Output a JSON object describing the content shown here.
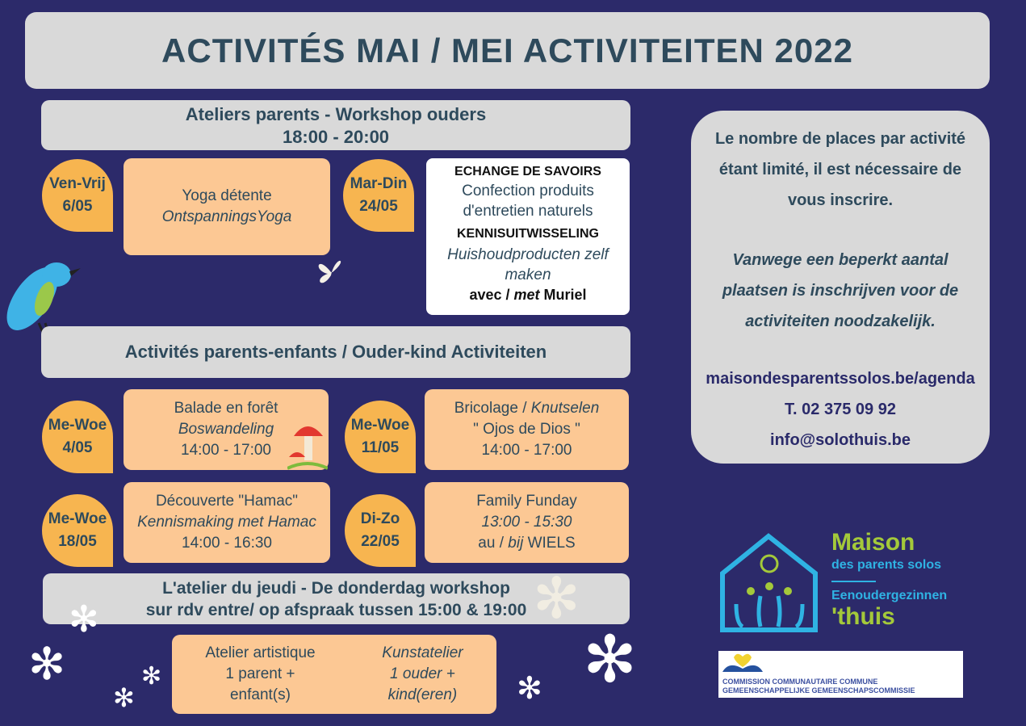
{
  "title": "ACTIVITÉS MAI / MEI ACTIVITEITEN 2022",
  "workshops": {
    "heading": "Ateliers parents - Workshop ouders",
    "time": "18:00 - 20:00",
    "items": [
      {
        "day": "Ven-Vrij",
        "date": "6/05",
        "title": "Yoga détente",
        "subtitle": "OntspanningsYoga"
      },
      {
        "day": "Mar-Din",
        "date": "24/05",
        "fr_label": "ECHANGE DE SAVOIRS",
        "fr_title": "Confection produits d'entretien naturels",
        "nl_label": "KENNISUITWISSELING",
        "nl_title": "Huishoudproducten zelf maken",
        "with_fr": "avec /",
        "with_nl": "met",
        "with_name": "Muriel"
      }
    ]
  },
  "parent_child": {
    "heading": "Activités parents-enfants / Ouder-kind Activiteiten",
    "items": [
      {
        "day": "Me-Woe",
        "date": "4/05",
        "title": "Balade en forêt",
        "subtitle": "Boswandeling",
        "time": "14:00 - 17:00"
      },
      {
        "day": "Me-Woe",
        "date": "11/05",
        "title": "Bricolage /",
        "title_nl": "Knutselen",
        "subtitle": "\" Ojos de Dios \"",
        "time": "14:00 - 17:00"
      },
      {
        "day": "Me-Woe",
        "date": "18/05",
        "title": "Découverte \"Hamac\"",
        "subtitle": "Kennismaking met Hamac",
        "time": "14:00 - 16:30"
      },
      {
        "day": "Di-Zo",
        "date": "22/05",
        "title": "Family Funday",
        "subtitle": "13:00 - 15:30",
        "place_pre": "au /",
        "place_nl": "bij",
        "place": "WIELS"
      }
    ]
  },
  "thursday": {
    "heading": "L'atelier du jeudi - De donderdag workshop",
    "subheading": "sur rdv entre/ op afspraak tussen 15:00 & 19:00",
    "fr": [
      "Atelier artistique",
      "1 parent +",
      "enfant(s)"
    ],
    "nl": [
      "Kunstatelier",
      "1 ouder +",
      "kind(eren)"
    ]
  },
  "info": {
    "fr": "Le nombre de places par activité étant limité, il est nécessaire de vous inscrire.",
    "nl": "Vanwege een beperkt aantal plaatsen is inschrijven voor de activiteiten noodzakelijk.",
    "website": "maisondesparentssolos.be/agenda",
    "phone": "T. 02 375 09 92",
    "email": "info@solothuis.be"
  },
  "logo": {
    "line1": "Maison",
    "line2": "des parents solos",
    "line3": "Eenoudergezinnen",
    "line4": "'thuis"
  },
  "sponsor": {
    "line1": "COMMISSION COMMUNAUTAIRE COMMUNE",
    "line2": "GEMEENSCHAPPELIJKE GEMEENSCHAPSCOMMISSIE"
  },
  "colors": {
    "background": "#2c2a6a",
    "bubble": "#f7b550",
    "box": "#fcc894",
    "panel": "#d9d9d9",
    "text": "#2e4a5c"
  }
}
